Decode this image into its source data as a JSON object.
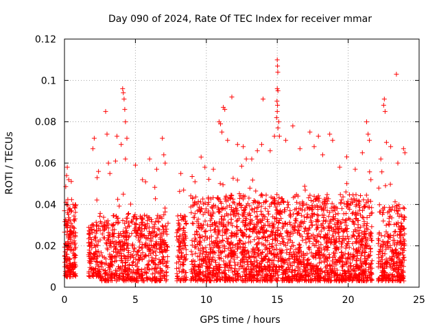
{
  "chart_data": {
    "type": "scatter",
    "title": "Day 090 of 2024, Rate Of TEC Index for receiver mmar",
    "xlabel": "GPS time / hours",
    "ylabel": "ROTI / TECUs",
    "xlim": [
      0,
      25
    ],
    "ylim": [
      0,
      0.12
    ],
    "xticks": [
      0,
      5,
      10,
      15,
      20,
      25
    ],
    "xtick_labels": [
      "0",
      "5",
      "10",
      "15",
      "20",
      "25"
    ],
    "yticks": [
      0,
      0.02,
      0.04,
      0.06,
      0.08,
      0.1,
      0.12
    ],
    "ytick_labels": [
      "0",
      "0.02",
      "0.04",
      "0.06",
      "0.08",
      "0.1",
      "0.12"
    ],
    "grid": true,
    "marker": "+",
    "color": "#ff0000",
    "series": [
      {
        "name": "ROTI",
        "clusters": [
          {
            "x_range": [
              0.0,
              0.8
            ],
            "y_range": [
              0.005,
              0.04
            ],
            "n": 180
          },
          {
            "x_range": [
              1.7,
              2.5
            ],
            "y_range": [
              0.005,
              0.03
            ],
            "n": 120
          },
          {
            "x_range": [
              2.5,
              7.3
            ],
            "y_range": [
              0.003,
              0.035
            ],
            "n": 650
          },
          {
            "x_range": [
              7.9,
              8.6
            ],
            "y_range": [
              0.003,
              0.035
            ],
            "n": 110
          },
          {
            "x_range": [
              8.9,
              21.7
            ],
            "y_range": [
              0.003,
              0.045
            ],
            "n": 2200
          },
          {
            "x_range": [
              22.1,
              24.0
            ],
            "y_range": [
              0.003,
              0.04
            ],
            "n": 320
          }
        ],
        "points": [
          {
            "x": 0.1,
            "y": 0.041
          },
          {
            "x": 0.15,
            "y": 0.054
          },
          {
            "x": 0.2,
            "y": 0.058
          },
          {
            "x": 0.3,
            "y": 0.052
          },
          {
            "x": 0.6,
            "y": 0.04
          },
          {
            "x": 2.0,
            "y": 0.067
          },
          {
            "x": 2.1,
            "y": 0.072
          },
          {
            "x": 2.3,
            "y": 0.053
          },
          {
            "x": 2.4,
            "y": 0.056
          },
          {
            "x": 2.9,
            "y": 0.085
          },
          {
            "x": 3.0,
            "y": 0.074
          },
          {
            "x": 3.1,
            "y": 0.06
          },
          {
            "x": 3.2,
            "y": 0.055
          },
          {
            "x": 3.6,
            "y": 0.061
          },
          {
            "x": 3.7,
            "y": 0.073
          },
          {
            "x": 4.0,
            "y": 0.069
          },
          {
            "x": 4.1,
            "y": 0.096
          },
          {
            "x": 4.15,
            "y": 0.094
          },
          {
            "x": 4.2,
            "y": 0.091
          },
          {
            "x": 4.25,
            "y": 0.086
          },
          {
            "x": 4.3,
            "y": 0.08
          },
          {
            "x": 4.4,
            "y": 0.072
          },
          {
            "x": 4.3,
            "y": 0.062
          },
          {
            "x": 5.0,
            "y": 0.059
          },
          {
            "x": 5.5,
            "y": 0.052
          },
          {
            "x": 6.0,
            "y": 0.062
          },
          {
            "x": 6.5,
            "y": 0.057
          },
          {
            "x": 6.9,
            "y": 0.072
          },
          {
            "x": 7.0,
            "y": 0.064
          },
          {
            "x": 7.1,
            "y": 0.06
          },
          {
            "x": 8.2,
            "y": 0.055
          },
          {
            "x": 8.4,
            "y": 0.047
          },
          {
            "x": 9.2,
            "y": 0.051
          },
          {
            "x": 9.9,
            "y": 0.058
          },
          {
            "x": 10.5,
            "y": 0.057
          },
          {
            "x": 10.9,
            "y": 0.08
          },
          {
            "x": 11.0,
            "y": 0.079
          },
          {
            "x": 11.1,
            "y": 0.075
          },
          {
            "x": 11.2,
            "y": 0.087
          },
          {
            "x": 11.3,
            "y": 0.086
          },
          {
            "x": 11.5,
            "y": 0.071
          },
          {
            "x": 11.8,
            "y": 0.092
          },
          {
            "x": 12.2,
            "y": 0.069
          },
          {
            "x": 12.6,
            "y": 0.068
          },
          {
            "x": 13.2,
            "y": 0.062
          },
          {
            "x": 13.6,
            "y": 0.066
          },
          {
            "x": 13.9,
            "y": 0.069
          },
          {
            "x": 14.0,
            "y": 0.091
          },
          {
            "x": 14.5,
            "y": 0.066
          },
          {
            "x": 14.8,
            "y": 0.073
          },
          {
            "x": 15.0,
            "y": 0.11
          },
          {
            "x": 15.02,
            "y": 0.107
          },
          {
            "x": 15.04,
            "y": 0.104
          },
          {
            "x": 15.0,
            "y": 0.096
          },
          {
            "x": 15.05,
            "y": 0.095
          },
          {
            "x": 14.98,
            "y": 0.09
          },
          {
            "x": 15.02,
            "y": 0.088
          },
          {
            "x": 15.0,
            "y": 0.085
          },
          {
            "x": 14.95,
            "y": 0.082
          },
          {
            "x": 15.1,
            "y": 0.08
          },
          {
            "x": 15.05,
            "y": 0.077
          },
          {
            "x": 15.15,
            "y": 0.073
          },
          {
            "x": 15.6,
            "y": 0.071
          },
          {
            "x": 16.1,
            "y": 0.078
          },
          {
            "x": 16.6,
            "y": 0.067
          },
          {
            "x": 17.3,
            "y": 0.075
          },
          {
            "x": 17.6,
            "y": 0.068
          },
          {
            "x": 17.9,
            "y": 0.073
          },
          {
            "x": 18.2,
            "y": 0.064
          },
          {
            "x": 18.7,
            "y": 0.074
          },
          {
            "x": 18.9,
            "y": 0.071
          },
          {
            "x": 19.4,
            "y": 0.058
          },
          {
            "x": 19.9,
            "y": 0.063
          },
          {
            "x": 20.5,
            "y": 0.057
          },
          {
            "x": 21.0,
            "y": 0.065
          },
          {
            "x": 21.3,
            "y": 0.08
          },
          {
            "x": 21.4,
            "y": 0.074
          },
          {
            "x": 21.5,
            "y": 0.071
          },
          {
            "x": 21.6,
            "y": 0.052
          },
          {
            "x": 22.3,
            "y": 0.062
          },
          {
            "x": 22.5,
            "y": 0.088
          },
          {
            "x": 22.55,
            "y": 0.091
          },
          {
            "x": 22.6,
            "y": 0.085
          },
          {
            "x": 22.7,
            "y": 0.07
          },
          {
            "x": 23.0,
            "y": 0.068
          },
          {
            "x": 23.4,
            "y": 0.103
          },
          {
            "x": 23.5,
            "y": 0.06
          },
          {
            "x": 23.9,
            "y": 0.067
          },
          {
            "x": 24.0,
            "y": 0.065
          }
        ]
      }
    ]
  }
}
